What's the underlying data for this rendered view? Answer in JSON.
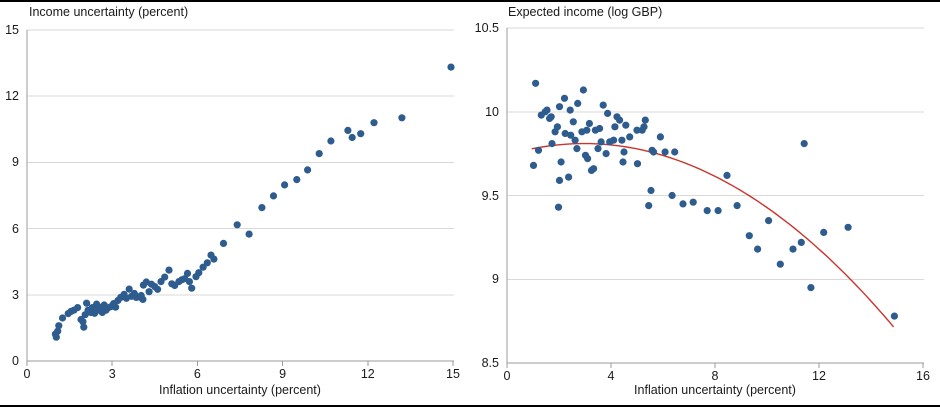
{
  "figure": {
    "background_color": "#ffffff",
    "top_border_color": "#000000",
    "bottom_border_color": "#000000"
  },
  "styles": {
    "point_color": "#2e5c8e",
    "curve_color": "#cb342c",
    "gridline_color": "#d9d9d9",
    "axis_line_color": "#9b9b9b",
    "text_color": "#1a1a1a"
  },
  "chart_data": [
    {
      "type": "scatter",
      "panel": "left",
      "title": "Income uncertainty (percent)",
      "xlabel": "Inflation uncertainty (percent)",
      "ylabel": "",
      "xlim": [
        0,
        15
      ],
      "ylim": [
        0,
        15
      ],
      "xticks": [
        0,
        3,
        6,
        9,
        12,
        15
      ],
      "xtick_labels": [
        "0",
        "3",
        "6",
        "9",
        "12",
        "15"
      ],
      "yticks": [
        0,
        3,
        6,
        9,
        12,
        15
      ],
      "ytick_labels": [
        "0",
        "3",
        "6",
        "9",
        "12",
        "15"
      ],
      "grid": "horizontal",
      "legend": "none",
      "points": [
        [
          1.0,
          1.22
        ],
        [
          1.03,
          1.08
        ],
        [
          1.08,
          1.35
        ],
        [
          1.12,
          1.6
        ],
        [
          1.25,
          1.95
        ],
        [
          1.45,
          2.15
        ],
        [
          1.55,
          2.25
        ],
        [
          1.65,
          2.3
        ],
        [
          1.78,
          2.42
        ],
        [
          1.9,
          1.88
        ],
        [
          1.97,
          1.78
        ],
        [
          2.0,
          1.53
        ],
        [
          2.05,
          2.1
        ],
        [
          2.1,
          2.62
        ],
        [
          2.15,
          2.3
        ],
        [
          2.25,
          2.2
        ],
        [
          2.3,
          2.42
        ],
        [
          2.38,
          2.16
        ],
        [
          2.45,
          2.58
        ],
        [
          2.5,
          2.3
        ],
        [
          2.58,
          2.43
        ],
        [
          2.65,
          2.2
        ],
        [
          2.72,
          2.54
        ],
        [
          2.78,
          2.3
        ],
        [
          2.85,
          2.4
        ],
        [
          2.95,
          2.46
        ],
        [
          3.05,
          2.6
        ],
        [
          3.12,
          2.44
        ],
        [
          3.2,
          2.74
        ],
        [
          3.3,
          2.88
        ],
        [
          3.42,
          3.02
        ],
        [
          3.5,
          2.84
        ],
        [
          3.6,
          3.26
        ],
        [
          3.68,
          2.93
        ],
        [
          3.78,
          3.06
        ],
        [
          3.85,
          2.88
        ],
        [
          3.95,
          2.9
        ],
        [
          4.02,
          2.97
        ],
        [
          4.08,
          2.79
        ],
        [
          4.1,
          3.44
        ],
        [
          4.2,
          3.58
        ],
        [
          4.3,
          3.14
        ],
        [
          4.38,
          3.48
        ],
        [
          4.5,
          3.37
        ],
        [
          4.6,
          3.25
        ],
        [
          4.72,
          3.6
        ],
        [
          4.85,
          3.8
        ],
        [
          5.0,
          4.12
        ],
        [
          5.1,
          3.5
        ],
        [
          5.2,
          3.42
        ],
        [
          5.35,
          3.6
        ],
        [
          5.45,
          3.68
        ],
        [
          5.55,
          3.73
        ],
        [
          5.65,
          3.97
        ],
        [
          5.72,
          3.6
        ],
        [
          5.8,
          3.3
        ],
        [
          5.95,
          3.82
        ],
        [
          6.05,
          4.0
        ],
        [
          6.2,
          4.25
        ],
        [
          6.35,
          4.45
        ],
        [
          6.48,
          4.8
        ],
        [
          6.58,
          4.62
        ],
        [
          6.92,
          5.33
        ],
        [
          7.4,
          6.17
        ],
        [
          7.82,
          5.75
        ],
        [
          8.27,
          6.95
        ],
        [
          8.68,
          7.48
        ],
        [
          9.07,
          7.98
        ],
        [
          9.5,
          8.22
        ],
        [
          9.88,
          8.66
        ],
        [
          10.29,
          9.4
        ],
        [
          10.7,
          9.97
        ],
        [
          11.3,
          10.45
        ],
        [
          11.45,
          10.13
        ],
        [
          11.75,
          10.3
        ],
        [
          12.22,
          10.8
        ],
        [
          13.2,
          11.02
        ],
        [
          14.93,
          13.32
        ]
      ]
    },
    {
      "type": "scatter",
      "panel": "right",
      "title": "Expected income (log GBP)",
      "xlabel": "Inflation uncertainty (percent)",
      "ylabel": "",
      "xlim": [
        0,
        16
      ],
      "ylim": [
        8.5,
        10.5
      ],
      "xticks": [
        0,
        4,
        8,
        12,
        16
      ],
      "xtick_labels": [
        "0",
        "4",
        "8",
        "12",
        "16"
      ],
      "yticks": [
        8.5,
        9,
        9.5,
        10,
        10.5
      ],
      "ytick_labels": [
        "8.5",
        "9",
        "9.5",
        "10",
        "10.5"
      ],
      "grid": "horizontal",
      "legend": "none",
      "points": [
        [
          1.02,
          9.68
        ],
        [
          1.1,
          10.17
        ],
        [
          1.21,
          9.77
        ],
        [
          1.32,
          9.98
        ],
        [
          1.47,
          10.0
        ],
        [
          1.54,
          10.01
        ],
        [
          1.64,
          9.96
        ],
        [
          1.7,
          9.97
        ],
        [
          1.73,
          9.81
        ],
        [
          1.85,
          9.88
        ],
        [
          1.94,
          9.91
        ],
        [
          1.98,
          9.43
        ],
        [
          2.02,
          10.03
        ],
        [
          2.02,
          9.59
        ],
        [
          2.08,
          9.7
        ],
        [
          2.21,
          10.08
        ],
        [
          2.24,
          9.87
        ],
        [
          2.37,
          9.61
        ],
        [
          2.43,
          10.01
        ],
        [
          2.45,
          9.86
        ],
        [
          2.55,
          9.94
        ],
        [
          2.62,
          9.83
        ],
        [
          2.69,
          9.78
        ],
        [
          2.72,
          10.05
        ],
        [
          2.88,
          9.88
        ],
        [
          2.94,
          10.13
        ],
        [
          3.02,
          9.74
        ],
        [
          3.07,
          9.89
        ],
        [
          3.1,
          9.72
        ],
        [
          3.17,
          9.93
        ],
        [
          3.25,
          9.65
        ],
        [
          3.33,
          9.66
        ],
        [
          3.4,
          9.89
        ],
        [
          3.5,
          9.78
        ],
        [
          3.56,
          9.9
        ],
        [
          3.62,
          9.82
        ],
        [
          3.7,
          10.04
        ],
        [
          3.81,
          9.75
        ],
        [
          3.87,
          9.99
        ],
        [
          3.95,
          9.82
        ],
        [
          4.1,
          9.83
        ],
        [
          4.15,
          9.91
        ],
        [
          4.23,
          9.97
        ],
        [
          4.33,
          9.95
        ],
        [
          4.42,
          9.83
        ],
        [
          4.46,
          9.7
        ],
        [
          4.5,
          9.76
        ],
        [
          4.57,
          9.92
        ],
        [
          4.72,
          9.85
        ],
        [
          5.0,
          9.89
        ],
        [
          5.02,
          9.69
        ],
        [
          5.2,
          9.89
        ],
        [
          5.27,
          9.91
        ],
        [
          5.32,
          9.95
        ],
        [
          5.45,
          9.44
        ],
        [
          5.54,
          9.53
        ],
        [
          5.58,
          9.77
        ],
        [
          5.64,
          9.76
        ],
        [
          5.9,
          9.85
        ],
        [
          6.08,
          9.76
        ],
        [
          6.35,
          9.5
        ],
        [
          6.45,
          9.76
        ],
        [
          6.77,
          9.45
        ],
        [
          7.16,
          9.46
        ],
        [
          7.7,
          9.41
        ],
        [
          8.12,
          9.41
        ],
        [
          8.46,
          9.62
        ],
        [
          8.85,
          9.44
        ],
        [
          9.32,
          9.26
        ],
        [
          9.64,
          9.18
        ],
        [
          10.06,
          9.35
        ],
        [
          10.51,
          9.09
        ],
        [
          11.0,
          9.18
        ],
        [
          11.32,
          9.22
        ],
        [
          11.43,
          9.81
        ],
        [
          11.69,
          8.95
        ],
        [
          12.18,
          9.28
        ],
        [
          13.12,
          9.31
        ],
        [
          14.9,
          8.78
        ]
      ],
      "fit_curve": {
        "shape": "quadratic",
        "coefficients": [
          9.742,
          0.0459,
          -0.00773
        ],
        "x_domain": [
          0.95,
          14.87
        ],
        "equation": "y = 9.742 + 0.0459x - 0.00773x^2",
        "color": "#cb342c"
      }
    }
  ]
}
